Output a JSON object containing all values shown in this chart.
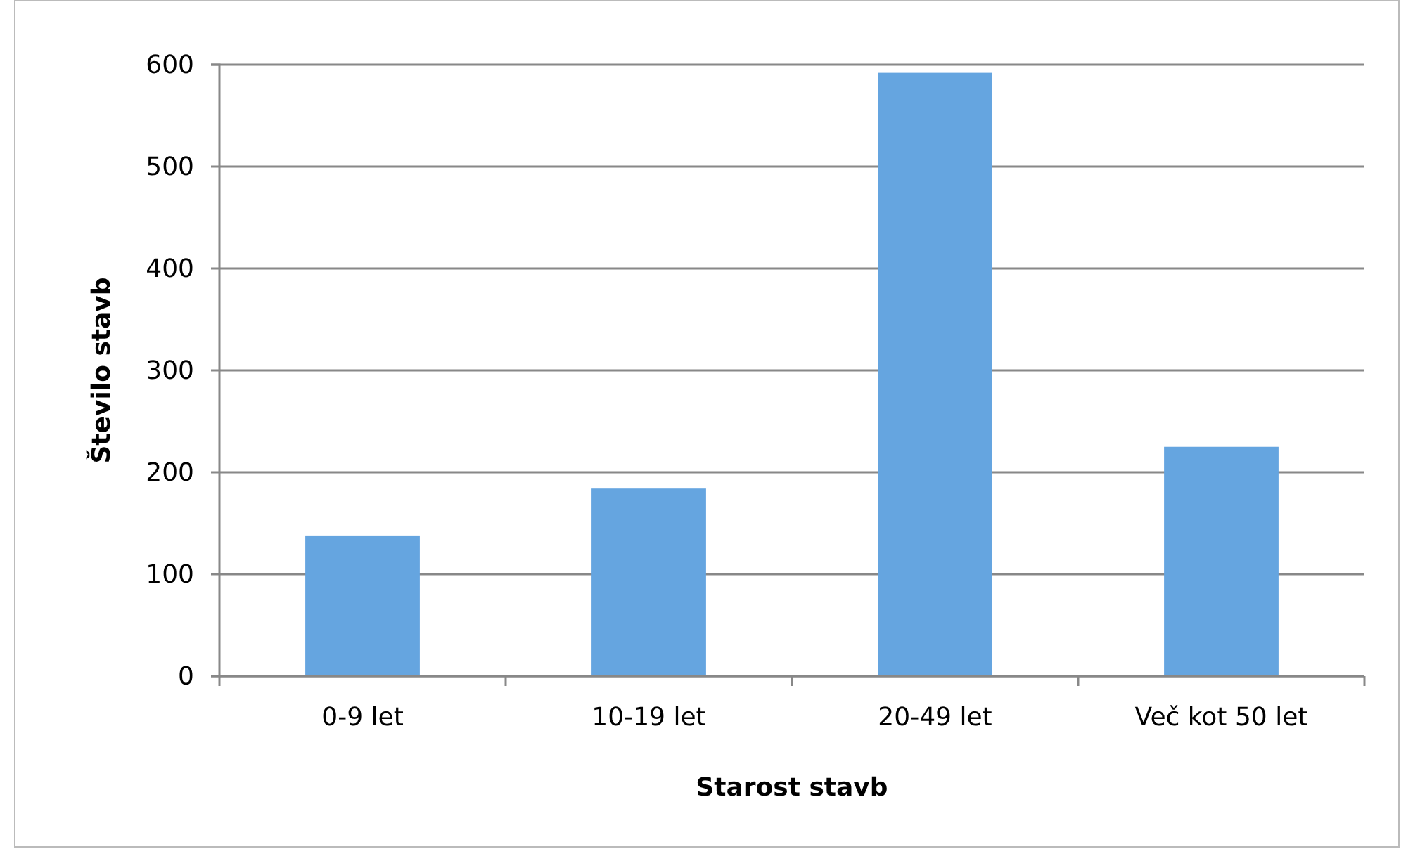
{
  "chart_data": {
    "type": "bar",
    "xlabel": "Starost stavb",
    "ylabel": "Število stavb",
    "categories": [
      "0-9 let",
      "10-19 let",
      "20-49 let",
      "Več kot 50 let"
    ],
    "values": [
      138,
      184,
      592,
      225
    ],
    "color": "#65a5e0",
    "ylim": [
      0,
      600
    ],
    "yticks": [
      0,
      100,
      200,
      300,
      400,
      500,
      600
    ],
    "grid": "y"
  }
}
